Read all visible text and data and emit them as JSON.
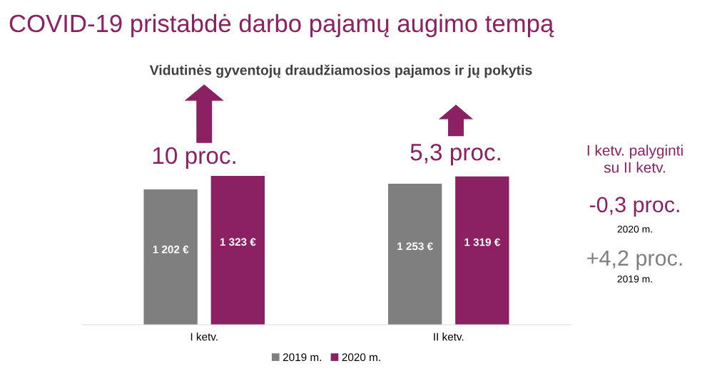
{
  "chart_data": {
    "type": "bar",
    "title": "COVID-19 pristabdė darbo pajamų augimo tempą",
    "subtitle": "Vidutinės gyventojų draudžiamosios pajamos ir jų pokytis",
    "categories": [
      "I ketv.",
      "II ketv."
    ],
    "series": [
      {
        "name": "2019 m.",
        "color": "#7f7f7f",
        "values": [
          1202,
          1253
        ],
        "value_labels": [
          "1 202 €",
          "1 253 €"
        ]
      },
      {
        "name": "2020 m.",
        "color": "#8b2063",
        "values": [
          1323,
          1319
        ],
        "value_labels": [
          "1 323 €",
          "1 319 €"
        ]
      }
    ],
    "annotations": [
      "10 proc.",
      "5,3 proc.",
      "I ketv. palyginti\nsu II ketv.",
      "-0,3 proc.",
      "2020 m.",
      "+4,2 proc.",
      "2019 m."
    ],
    "legend": "bottom",
    "grid": false
  }
}
